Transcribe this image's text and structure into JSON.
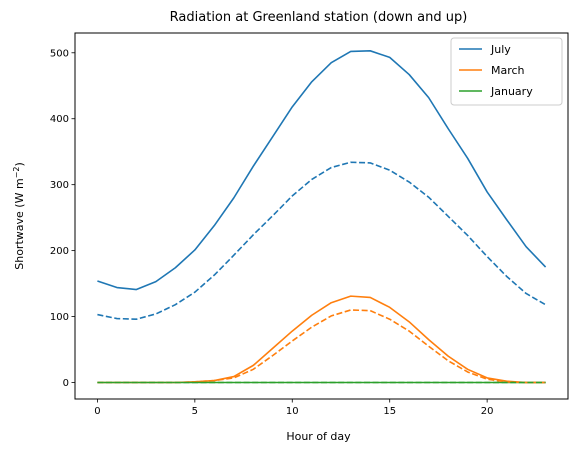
{
  "chart_data": {
    "type": "line",
    "title": "Radiation at Greenland station (down and up)",
    "xlabel": "Hour of day",
    "ylabel_main": "Shortwave (W m",
    "ylabel_exp": "−2",
    "ylabel_close": ")",
    "xlim": [
      -1.15,
      24.15
    ],
    "ylim": [
      -25,
      530
    ],
    "xticks": [
      0,
      5,
      10,
      15,
      20
    ],
    "yticks": [
      0,
      100,
      200,
      300,
      400,
      500
    ],
    "grid": false,
    "legend_position": "top-right",
    "x": [
      0,
      1,
      2,
      3,
      4,
      5,
      6,
      7,
      8,
      9,
      10,
      11,
      12,
      13,
      14,
      15,
      16,
      17,
      18,
      19,
      20,
      21,
      22,
      23
    ],
    "series": [
      {
        "name": "July",
        "kind": "down",
        "color": "#1f77b4",
        "style": "solid",
        "values": [
          154,
          144,
          141,
          153,
          174,
          201,
          238,
          280,
          328,
          373,
          418,
          456,
          485,
          502,
          503,
          493,
          467,
          432,
          385,
          340,
          289,
          247,
          206,
          175
        ]
      },
      {
        "name": "March",
        "kind": "down",
        "color": "#ff7f0e",
        "style": "solid",
        "values": [
          0,
          0,
          0,
          0,
          0,
          1,
          3,
          9,
          26,
          52,
          78,
          102,
          121,
          131,
          129,
          114,
          92,
          65,
          40,
          20,
          7,
          2,
          0,
          0
        ]
      },
      {
        "name": "January",
        "kind": "down",
        "color": "#2ca02c",
        "style": "solid",
        "values": [
          0,
          0,
          0,
          0,
          0,
          0,
          0,
          0,
          0,
          0,
          0,
          0,
          0,
          0,
          0,
          0,
          0,
          0,
          0,
          0,
          0,
          0,
          0,
          0
        ]
      },
      {
        "kind": "up",
        "color": "#1f77b4",
        "style": "dashed",
        "values": [
          103,
          97,
          96,
          104,
          118,
          137,
          163,
          193,
          224,
          253,
          283,
          308,
          326,
          334,
          333,
          322,
          304,
          281,
          252,
          223,
          191,
          161,
          135,
          118
        ]
      },
      {
        "kind": "up",
        "color": "#ff7f0e",
        "style": "dashed",
        "values": [
          0,
          0,
          0,
          0,
          0,
          1,
          3,
          7,
          20,
          41,
          63,
          84,
          101,
          110,
          109,
          96,
          78,
          55,
          33,
          16,
          5,
          1,
          0,
          0
        ]
      },
      {
        "kind": "up",
        "color": "#2ca02c",
        "style": "dashed",
        "values": [
          0,
          0,
          0,
          0,
          0,
          0,
          0,
          0,
          0,
          0,
          0,
          0,
          0,
          0,
          0,
          0,
          0,
          0,
          0,
          0,
          0,
          0,
          0,
          0
        ]
      }
    ]
  }
}
